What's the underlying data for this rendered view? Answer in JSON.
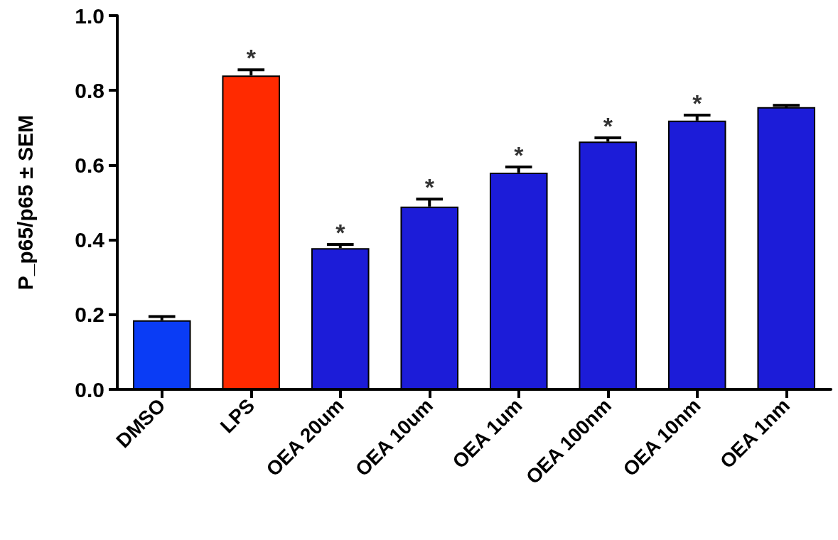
{
  "chart_data": {
    "type": "bar",
    "ylabel": "P_p65/p65 ± SEM",
    "categories": [
      "DMSO",
      "LPS",
      "OEA 20um",
      "OEA 10um",
      "OEA 1um",
      "OEA 100nm",
      "OEA 10nm",
      "OEA 1nm"
    ],
    "values": [
      0.185,
      0.84,
      0.378,
      0.489,
      0.58,
      0.663,
      0.719,
      0.755
    ],
    "errors": [
      0.01,
      0.015,
      0.01,
      0.02,
      0.015,
      0.01,
      0.015,
      0.005
    ],
    "colors": [
      "#0a3cf5",
      "#ff2a00",
      "#1c1cd8",
      "#1c1cd8",
      "#1c1cd8",
      "#1c1cd8",
      "#1c1cd8",
      "#1c1cd8"
    ],
    "ylim": [
      0,
      1.0
    ],
    "yticks": [
      {
        "value": 0,
        "label": "0.0"
      },
      {
        "value": 0.2,
        "label": "0.2"
      },
      {
        "value": 0.4,
        "label": "0.4"
      },
      {
        "value": 0.6,
        "label": "0.6"
      },
      {
        "value": 0.8,
        "label": "0.8"
      },
      {
        "value": 1.0,
        "label": "1.0"
      }
    ],
    "annotations": [
      {
        "text": "*",
        "x": "LPS",
        "y": 0.855
      },
      {
        "text": "*",
        "x": "OEA 20um",
        "y": 0.388
      },
      {
        "text": "*",
        "x": "OEA 10um",
        "y": 0.509
      },
      {
        "text": "*",
        "x": "OEA 1um",
        "y": 0.595
      },
      {
        "text": "*",
        "x": "OEA 100nm",
        "y": 0.673
      },
      {
        "text": "*",
        "x": "OEA 10nm",
        "y": 0.734
      }
    ],
    "grid": false
  }
}
